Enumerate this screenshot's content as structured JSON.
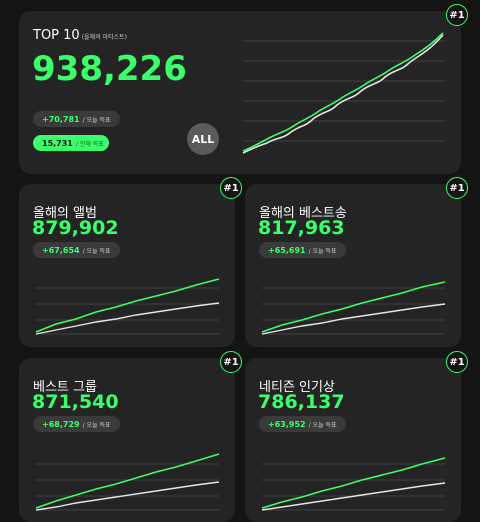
{
  "accent_color": "#3bff6a",
  "secondary_line_color": "#e6e6e6",
  "main": {
    "title": "TOP 10",
    "subtitle": "(올해의 아티스트)",
    "value": "938,226",
    "delta": "+70,781",
    "delta_label": "/ 오늘 득표",
    "total": "15,731",
    "total_label": "/ 전체 득표",
    "all_label": "ALL",
    "rank": "#1"
  },
  "cards": [
    {
      "title": "올해의 앨범",
      "value": "879,902",
      "delta": "+67,654",
      "delta_label": "/ 오늘 득표",
      "rank": "#1"
    },
    {
      "title": "올해의 베스트송",
      "value": "817,963",
      "delta": "+65,691",
      "delta_label": "/ 오늘 득표",
      "rank": "#1"
    },
    {
      "title": "베스트 그룹",
      "value": "871,540",
      "delta": "+68,729",
      "delta_label": "/ 오늘 득표",
      "rank": "#1"
    },
    {
      "title": "네티즌 인기상",
      "value": "786,137",
      "delta": "+63,952",
      "delta_label": "/ 오늘 득표",
      "rank": "#1"
    }
  ]
}
